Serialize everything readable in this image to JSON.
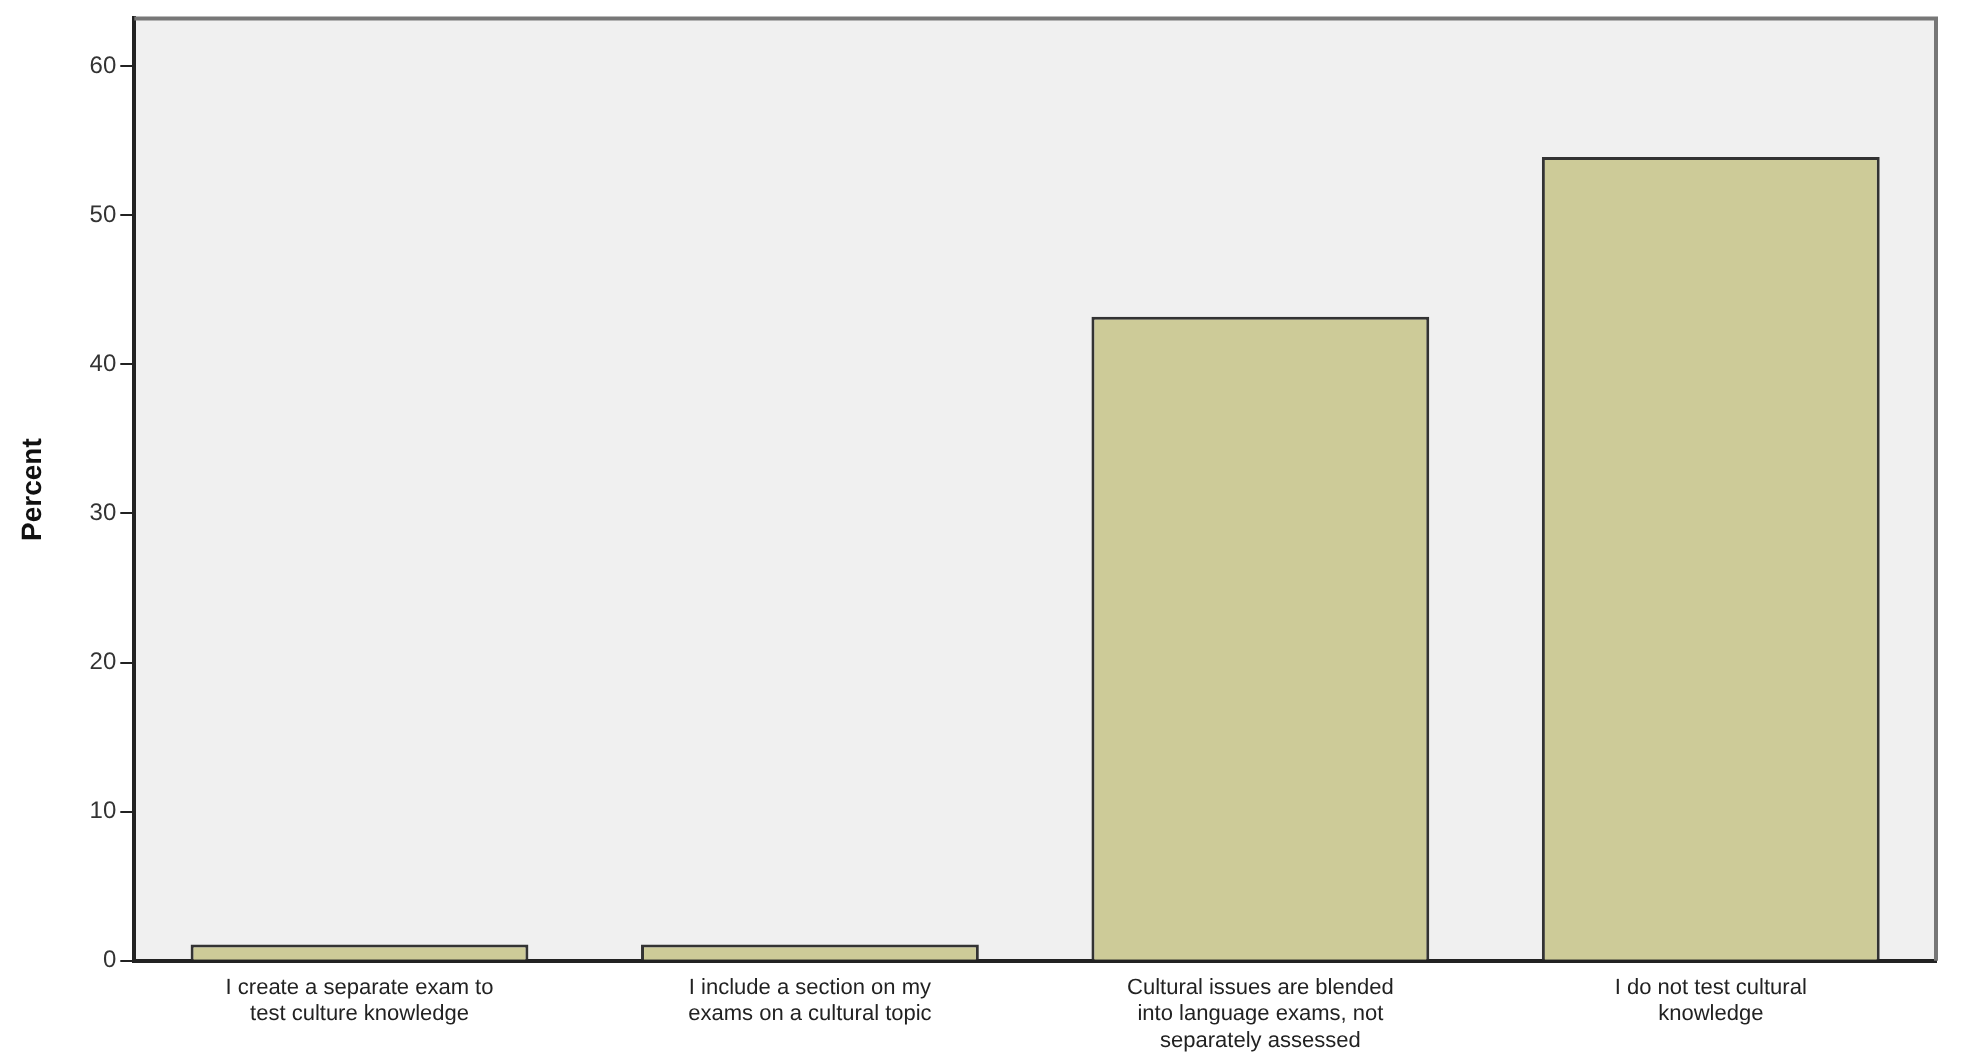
{
  "chart_data": {
    "type": "bar",
    "ylabel": "Percent",
    "categories": [
      "I create a separate exam to test culture knowledge",
      "I include a section on my exams on a cultural topic",
      "Cultural issues are blended into language exams, not separately assessed",
      "I do not test cultural knowledge"
    ],
    "values": [
      1.1,
      1.1,
      43.2,
      53.9
    ],
    "color": "#cdcb98",
    "ylim": [
      0,
      63.2
    ],
    "yticks": [
      0,
      10,
      20,
      30,
      40,
      50,
      60
    ],
    "grid": false,
    "legend": false
  }
}
